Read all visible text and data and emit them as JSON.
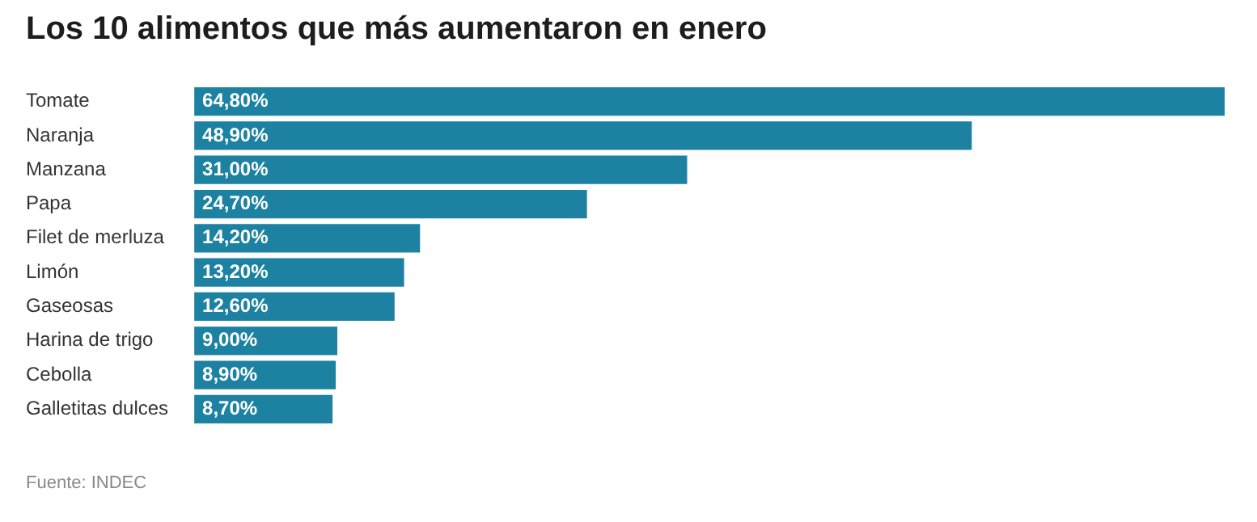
{
  "chart_data": {
    "type": "bar",
    "orientation": "horizontal",
    "title": "Los 10 alimentos que más aumentaron en enero",
    "categories": [
      "Tomate",
      "Naranja",
      "Manzana",
      "Papa",
      "Filet de merluza",
      "Limón",
      "Gaseosas",
      "Harina de trigo",
      "Cebolla",
      "Galletitas dulces"
    ],
    "values": [
      64.8,
      48.9,
      31.0,
      24.7,
      14.2,
      13.2,
      12.6,
      9.0,
      8.9,
      8.7
    ],
    "value_labels": [
      "64,80%",
      "48,90%",
      "31,00%",
      "24,70%",
      "14,20%",
      "13,20%",
      "12,60%",
      "9,00%",
      "8,90%",
      "8,70%"
    ],
    "color": "#1d81a2",
    "grid": false,
    "legend": false,
    "annotations": [
      "Fuente: INDEC"
    ]
  }
}
